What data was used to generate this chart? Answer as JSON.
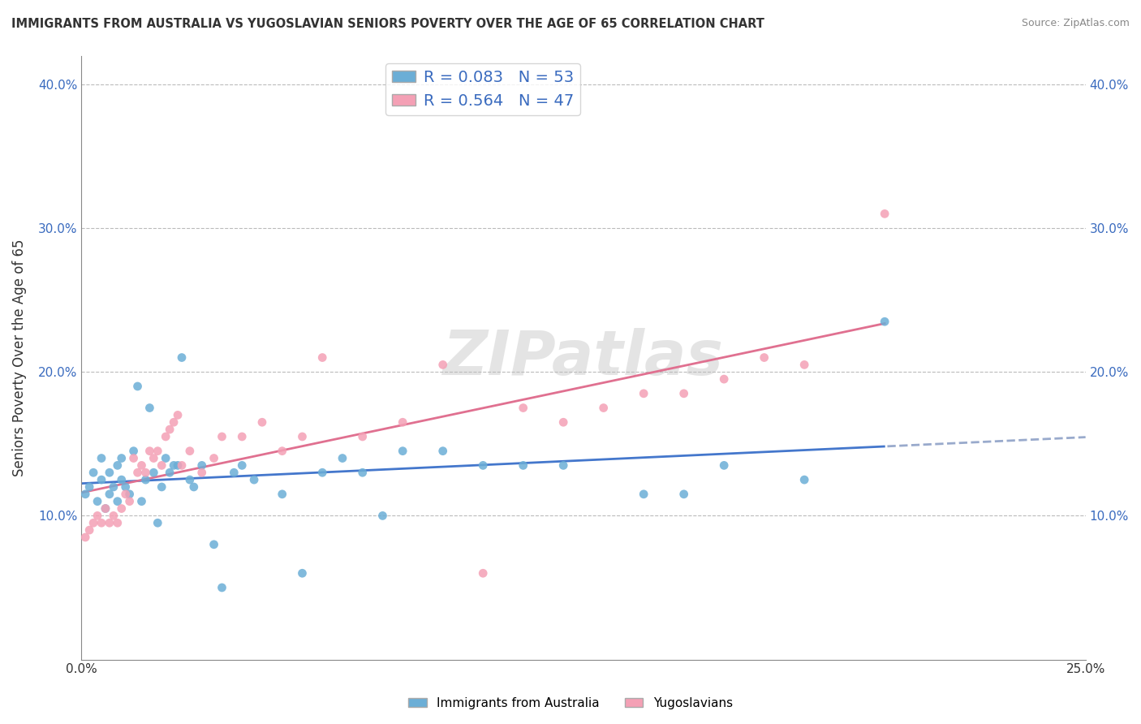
{
  "title": "IMMIGRANTS FROM AUSTRALIA VS YUGOSLAVIAN SENIORS POVERTY OVER THE AGE OF 65 CORRELATION CHART",
  "source": "Source: ZipAtlas.com",
  "ylabel": "Seniors Poverty Over the Age of 65",
  "color_blue": "#6baed6",
  "color_pink": "#f4a0b5",
  "color_blue_text": "#3a6bbf",
  "watermark": "ZIPatlas",
  "legend_r1": "R = 0.083   N = 53",
  "legend_r2": "R = 0.564   N = 47",
  "legend_label1": "Immigrants from Australia",
  "legend_label2": "Yugoslavians",
  "xlim": [
    0.0,
    0.25
  ],
  "ylim": [
    0.0,
    0.42
  ],
  "australia_x": [
    0.001,
    0.002,
    0.003,
    0.004,
    0.005,
    0.005,
    0.006,
    0.007,
    0.007,
    0.008,
    0.009,
    0.009,
    0.01,
    0.01,
    0.011,
    0.012,
    0.013,
    0.014,
    0.015,
    0.016,
    0.017,
    0.018,
    0.019,
    0.02,
    0.021,
    0.022,
    0.023,
    0.024,
    0.025,
    0.027,
    0.028,
    0.03,
    0.033,
    0.035,
    0.038,
    0.04,
    0.043,
    0.05,
    0.055,
    0.06,
    0.065,
    0.07,
    0.075,
    0.08,
    0.09,
    0.1,
    0.11,
    0.12,
    0.14,
    0.15,
    0.16,
    0.18,
    0.2
  ],
  "australia_y": [
    0.115,
    0.12,
    0.13,
    0.11,
    0.125,
    0.14,
    0.105,
    0.115,
    0.13,
    0.12,
    0.135,
    0.11,
    0.125,
    0.14,
    0.12,
    0.115,
    0.145,
    0.19,
    0.11,
    0.125,
    0.175,
    0.13,
    0.095,
    0.12,
    0.14,
    0.13,
    0.135,
    0.135,
    0.21,
    0.125,
    0.12,
    0.135,
    0.08,
    0.05,
    0.13,
    0.135,
    0.125,
    0.115,
    0.06,
    0.13,
    0.14,
    0.13,
    0.1,
    0.145,
    0.145,
    0.135,
    0.135,
    0.135,
    0.115,
    0.115,
    0.135,
    0.125,
    0.235
  ],
  "yugoslavian_x": [
    0.001,
    0.002,
    0.003,
    0.004,
    0.005,
    0.006,
    0.007,
    0.008,
    0.009,
    0.01,
    0.011,
    0.012,
    0.013,
    0.014,
    0.015,
    0.016,
    0.017,
    0.018,
    0.019,
    0.02,
    0.021,
    0.022,
    0.023,
    0.024,
    0.025,
    0.027,
    0.03,
    0.033,
    0.035,
    0.04,
    0.045,
    0.05,
    0.055,
    0.06,
    0.07,
    0.08,
    0.09,
    0.1,
    0.11,
    0.12,
    0.13,
    0.14,
    0.15,
    0.16,
    0.17,
    0.18,
    0.2
  ],
  "yugoslavian_y": [
    0.085,
    0.09,
    0.095,
    0.1,
    0.095,
    0.105,
    0.095,
    0.1,
    0.095,
    0.105,
    0.115,
    0.11,
    0.14,
    0.13,
    0.135,
    0.13,
    0.145,
    0.14,
    0.145,
    0.135,
    0.155,
    0.16,
    0.165,
    0.17,
    0.135,
    0.145,
    0.13,
    0.14,
    0.155,
    0.155,
    0.165,
    0.145,
    0.155,
    0.21,
    0.155,
    0.165,
    0.205,
    0.06,
    0.175,
    0.165,
    0.175,
    0.185,
    0.185,
    0.195,
    0.21,
    0.205,
    0.31
  ]
}
